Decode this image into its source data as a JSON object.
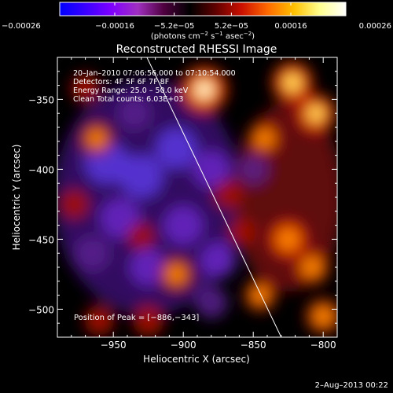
{
  "chart_data": {
    "type": "heatmap",
    "title": "Reconstructed RHESSI Image",
    "xlabel": "Heliocentric X (arcsec)",
    "ylabel": "Heliocentric Y (arcsec)",
    "xlim": [
      -990,
      -790
    ],
    "ylim": [
      -520,
      -320
    ],
    "x_ticks": [
      -950,
      -900,
      -850,
      -800
    ],
    "x_tick_labels": [
      "−950",
      "−900",
      "−850",
      "−800"
    ],
    "y_ticks": [
      -500,
      -450,
      -400,
      -350
    ],
    "y_tick_labels": [
      "−500",
      "−450",
      "−400",
      "−350"
    ],
    "colorbar": {
      "range": [
        -0.00026,
        0.00026
      ],
      "ticks": [
        -0.00026,
        -0.00016,
        -5.2e-05,
        5.2e-05,
        0.00016,
        0.00026
      ],
      "tick_labels": [
        "−0.00026",
        "−0.00016",
        "−5.2e−05",
        "5.2e−05",
        "0.00016",
        "0.00026"
      ],
      "unit_label": {
        "prefix": "(photons cm",
        "exp1": "−2",
        "mid1": " s",
        "exp2": "−1",
        "mid2": " asec",
        "exp3": "−2",
        "suffix": ")"
      },
      "colors": [
        "#0000ff",
        "#3a00ff",
        "#8000ff",
        "#a030c0",
        "#500040",
        "#000000",
        "#600000",
        "#cc1000",
        "#ff6a00",
        "#ffc000",
        "#ffff90",
        "#ffffff"
      ]
    },
    "annotations": [
      "20–Jan–2010 07:06:56.000 to 07:10:54.000",
      "Detectors: 4F 5F 6F 7F 8F",
      "Energy Range: 25.0 – 50.0 keV",
      "Clean    Total counts: 6.03E+03"
    ],
    "peak_label": "Position of Peak = [−886,−343]",
    "peak": [
      -886,
      -343
    ],
    "limb_line": [
      [
        -926,
        -320
      ],
      [
        -830,
        -520
      ]
    ],
    "hot_spots": [
      {
        "x": -885,
        "y": -343,
        "v": 1.0
      },
      {
        "x": -822,
        "y": -338,
        "v": 0.8
      },
      {
        "x": -805,
        "y": -360,
        "v": 0.7
      },
      {
        "x": -842,
        "y": -378,
        "v": 0.55
      },
      {
        "x": -825,
        "y": -450,
        "v": 0.65
      },
      {
        "x": -808,
        "y": -470,
        "v": 0.6
      },
      {
        "x": -845,
        "y": -490,
        "v": 0.5
      },
      {
        "x": -800,
        "y": -505,
        "v": 0.6
      },
      {
        "x": -905,
        "y": -475,
        "v": 0.55
      },
      {
        "x": -925,
        "y": -508,
        "v": 0.45
      },
      {
        "x": -960,
        "y": -508,
        "v": 0.4
      },
      {
        "x": -978,
        "y": -425,
        "v": 0.4
      },
      {
        "x": -962,
        "y": -378,
        "v": 0.5
      },
      {
        "x": -970,
        "y": -342,
        "v": 0.35
      },
      {
        "x": -930,
        "y": -448,
        "v": 0.3
      },
      {
        "x": -868,
        "y": -418,
        "v": 0.35
      },
      {
        "x": -858,
        "y": -445,
        "v": 0.3
      }
    ],
    "cold_spots": [
      {
        "x": -955,
        "y": -395,
        "v": 1.0
      },
      {
        "x": -930,
        "y": -405,
        "v": 1.0
      },
      {
        "x": -905,
        "y": -385,
        "v": 0.9
      },
      {
        "x": -945,
        "y": -435,
        "v": 0.85
      },
      {
        "x": -900,
        "y": -440,
        "v": 0.8
      },
      {
        "x": -880,
        "y": -400,
        "v": 0.7
      },
      {
        "x": -925,
        "y": -470,
        "v": 0.7
      },
      {
        "x": -875,
        "y": -465,
        "v": 0.65
      },
      {
        "x": -880,
        "y": -495,
        "v": 0.5
      },
      {
        "x": -965,
        "y": -460,
        "v": 0.6
      },
      {
        "x": -935,
        "y": -360,
        "v": 0.5
      },
      {
        "x": -850,
        "y": -400,
        "v": 0.35
      }
    ]
  },
  "footer": {
    "date": "2–Aug–2013 00:22"
  }
}
